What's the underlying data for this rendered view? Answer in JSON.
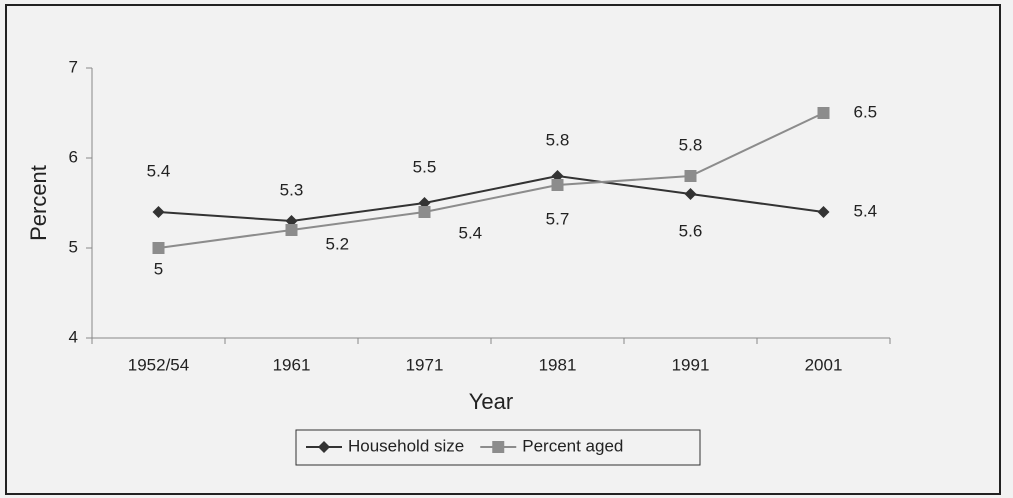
{
  "chart_data": {
    "type": "line",
    "x_label": "Year",
    "y_label": "Percent",
    "categories": [
      "1952/54",
      "1961",
      "1971",
      "1981",
      "1991",
      "2001"
    ],
    "series": [
      {
        "name": "Household size",
        "color": "#333333",
        "marker": "diamond",
        "values": [
          5.4,
          5.3,
          5.5,
          5.8,
          5.6,
          5.4
        ]
      },
      {
        "name": "Percent aged",
        "color": "#8c8c8c",
        "marker": "square",
        "values": [
          5,
          5.2,
          5.4,
          5.7,
          5.8,
          6.5
        ]
      }
    ],
    "ylim": [
      4,
      7
    ],
    "yticks": [
      4,
      5,
      6,
      7
    ],
    "grid": false,
    "legend": "bottom"
  }
}
